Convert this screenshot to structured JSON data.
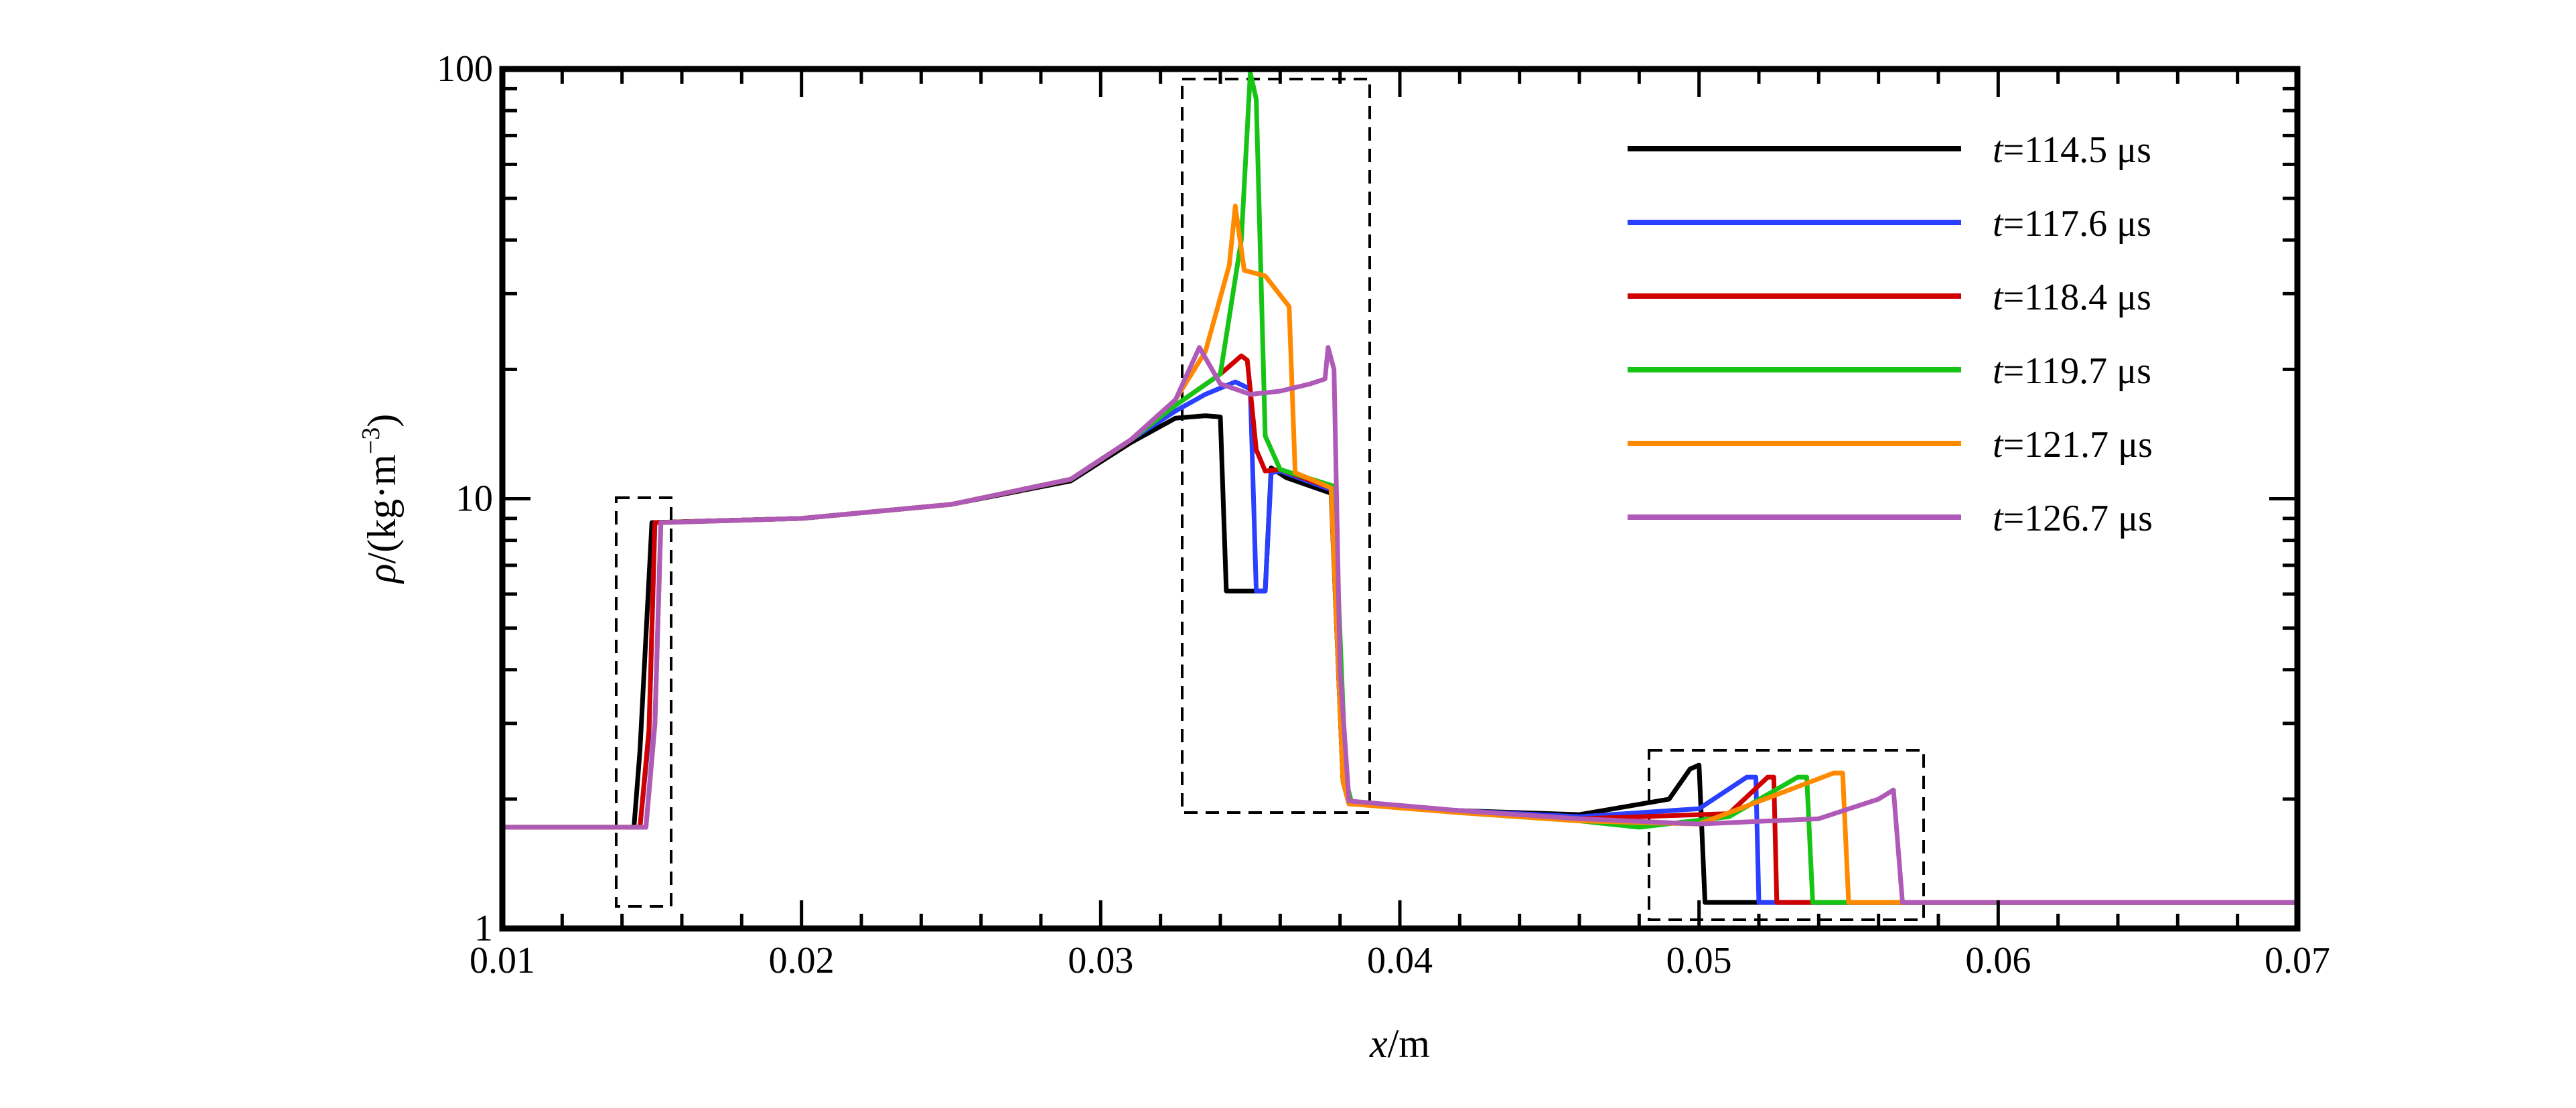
{
  "chart_data": {
    "type": "line",
    "title": "",
    "xlabel": {
      "var": "x",
      "unit": "/m"
    },
    "ylabel": {
      "var": "ρ",
      "unit": "/(kg·m",
      "sup": "−3",
      "close": ")"
    },
    "xlim": [
      0.01,
      0.07
    ],
    "ylim": [
      1,
      100
    ],
    "yscale": "log",
    "grid": false,
    "legend_position": "top-right",
    "x_ticks": [
      "0.01",
      "0.02",
      "0.03",
      "0.04",
      "0.05",
      "0.06",
      "0.07"
    ],
    "y_ticks": [
      "1",
      "10",
      "100"
    ],
    "series": [
      {
        "name": "t=114.5 μs",
        "label": {
          "var": "t",
          "rest": "=114.5 μs"
        },
        "color": "#000000",
        "x": [
          0.01,
          0.0144,
          0.0146,
          0.015,
          0.02,
          0.025,
          0.029,
          0.031,
          0.0325,
          0.0335,
          0.034,
          0.0342,
          0.0355,
          0.0357,
          0.0362,
          0.0377,
          0.0381,
          0.0383,
          0.042,
          0.046,
          0.049,
          0.0497,
          0.05,
          0.0502,
          0.07
        ],
        "y": [
          1.72,
          1.72,
          2.6,
          8.8,
          9.0,
          9.7,
          11.0,
          13.5,
          15.4,
          15.6,
          15.5,
          6.1,
          6.1,
          11.8,
          11.2,
          10.3,
          2.2,
          1.95,
          1.88,
          1.84,
          2.0,
          2.35,
          2.4,
          1.15,
          1.15
        ]
      },
      {
        "name": "t=117.6 μs",
        "label": {
          "var": "t",
          "rest": "=117.6 μs"
        },
        "color": "#2a3fff",
        "x": [
          0.01,
          0.0146,
          0.0149,
          0.0151,
          0.02,
          0.025,
          0.029,
          0.031,
          0.0325,
          0.0335,
          0.0345,
          0.035,
          0.0352,
          0.0355,
          0.0357,
          0.036,
          0.0377,
          0.0381,
          0.0383,
          0.042,
          0.046,
          0.05,
          0.0516,
          0.0519,
          0.052,
          0.07
        ],
        "y": [
          1.72,
          1.72,
          2.8,
          8.8,
          9.0,
          9.7,
          11.1,
          13.7,
          16.0,
          17.5,
          18.7,
          18.0,
          6.1,
          6.1,
          11.5,
          11.6,
          10.5,
          2.2,
          1.95,
          1.88,
          1.82,
          1.9,
          2.25,
          2.25,
          1.15,
          1.15
        ]
      },
      {
        "name": "t=118.4 μs",
        "label": {
          "var": "t",
          "rest": "=118.4 μs"
        },
        "color": "#d00000",
        "x": [
          0.01,
          0.0146,
          0.0149,
          0.0151,
          0.02,
          0.025,
          0.029,
          0.031,
          0.0325,
          0.034,
          0.0347,
          0.0349,
          0.0352,
          0.0355,
          0.036,
          0.0377,
          0.0381,
          0.0383,
          0.042,
          0.046,
          0.051,
          0.0523,
          0.0525,
          0.0526,
          0.07
        ],
        "y": [
          1.72,
          1.72,
          2.9,
          8.8,
          9.0,
          9.7,
          11.1,
          13.7,
          16.5,
          19.5,
          21.5,
          21.0,
          13.0,
          11.6,
          11.7,
          10.6,
          2.2,
          1.95,
          1.88,
          1.8,
          1.85,
          2.25,
          2.25,
          1.15,
          1.15
        ]
      },
      {
        "name": "t=119.7 μs",
        "label": {
          "var": "t",
          "rest": "=119.7 μs"
        },
        "color": "#16c416",
        "x": [
          0.01,
          0.0148,
          0.0151,
          0.0153,
          0.02,
          0.025,
          0.029,
          0.031,
          0.0325,
          0.034,
          0.0347,
          0.035,
          0.0352,
          0.0355,
          0.036,
          0.0378,
          0.0382,
          0.0384,
          0.042,
          0.046,
          0.048,
          0.051,
          0.0533,
          0.0536,
          0.0538,
          0.07
        ],
        "y": [
          1.72,
          1.72,
          3.0,
          8.8,
          9.0,
          9.7,
          11.1,
          13.7,
          16.5,
          19.5,
          40.0,
          98.0,
          85.0,
          14.0,
          11.7,
          10.7,
          2.2,
          1.95,
          1.86,
          1.78,
          1.72,
          1.82,
          2.25,
          2.25,
          1.15,
          1.15
        ]
      },
      {
        "name": "t=121.7 μs",
        "label": {
          "var": "t",
          "rest": "=121.7 μs"
        },
        "color": "#ff8a00",
        "x": [
          0.01,
          0.0148,
          0.0151,
          0.0153,
          0.02,
          0.025,
          0.029,
          0.031,
          0.0325,
          0.0335,
          0.0343,
          0.0345,
          0.0348,
          0.0355,
          0.0363,
          0.0365,
          0.0377,
          0.0381,
          0.0383,
          0.042,
          0.046,
          0.05,
          0.0545,
          0.0548,
          0.055,
          0.07
        ],
        "y": [
          1.72,
          1.72,
          3.0,
          8.8,
          9.0,
          9.7,
          11.1,
          13.7,
          17.0,
          22.0,
          35.0,
          48.0,
          34.0,
          33.0,
          28.0,
          11.5,
          10.6,
          2.2,
          1.95,
          1.86,
          1.78,
          1.75,
          2.3,
          2.3,
          1.15,
          1.15
        ]
      },
      {
        "name": "t=126.7 μs",
        "label": {
          "var": "t",
          "rest": "=126.7 μs"
        },
        "color": "#b05ab8",
        "x": [
          0.01,
          0.0148,
          0.0151,
          0.0153,
          0.02,
          0.025,
          0.029,
          0.031,
          0.0325,
          0.0333,
          0.034,
          0.035,
          0.036,
          0.037,
          0.0375,
          0.0376,
          0.0378,
          0.038,
          0.0383,
          0.042,
          0.046,
          0.05,
          0.054,
          0.056,
          0.0565,
          0.0568,
          0.07
        ],
        "y": [
          1.72,
          1.72,
          3.0,
          8.8,
          9.0,
          9.7,
          11.1,
          13.7,
          17.0,
          22.5,
          18.5,
          17.5,
          17.8,
          18.5,
          19.0,
          22.5,
          20.0,
          4.0,
          1.98,
          1.88,
          1.8,
          1.75,
          1.8,
          2.0,
          2.1,
          1.15,
          1.15
        ]
      }
    ]
  }
}
